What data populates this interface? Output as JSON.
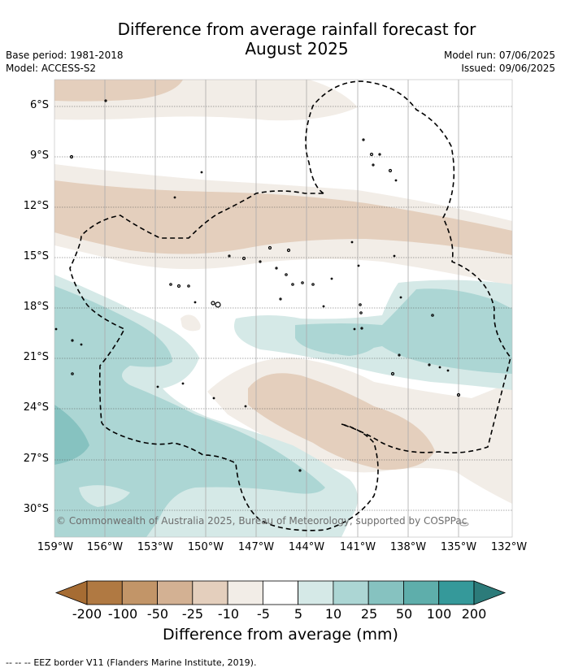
{
  "header": {
    "title_line1": "Difference from average rainfall forecast for",
    "title_line2": "August 2025",
    "base_period": "Base period: 1981-2018",
    "model": "Model: ACCESS-S2",
    "model_run": "Model run: 07/06/2025",
    "issued": "Issued: 09/06/2025"
  },
  "map": {
    "lat_labels": [
      "6°S",
      "9°S",
      "12°S",
      "15°S",
      "18°S",
      "21°S",
      "24°S",
      "27°S",
      "30°S"
    ],
    "lon_labels": [
      "159°W",
      "156°W",
      "153°W",
      "150°W",
      "147°W",
      "144°W",
      "141°W",
      "138°W",
      "135°W",
      "132°W"
    ],
    "copyright": "© Commonwealth of Australia 2025, Bureau of Meteorology, supported by COSPPac",
    "colors": {
      "dry_25_50": "#d3b193",
      "dry_10_25": "#e4cfbd",
      "dry_5_10": "#f2ede7",
      "wet_5_10": "#d5e9e7",
      "wet_10_25": "#acd6d4",
      "wet_25_50": "#86c2c0"
    }
  },
  "colorbar": {
    "labels": [
      "-200",
      "-100",
      "-50",
      "-25",
      "-10",
      "-5",
      "5",
      "10",
      "25",
      "50",
      "100",
      "200"
    ],
    "colors": [
      "#a66c33",
      "#b07942",
      "#c29568",
      "#d3b193",
      "#e4cfbd",
      "#f2ede7",
      "#ffffff",
      "#d5e9e7",
      "#acd6d4",
      "#86c2c0",
      "#5eaeab",
      "#35999a",
      "#2c7b7a"
    ],
    "title": "Difference from average (mm)"
  },
  "footer": {
    "legend_symbol": "--  --  --",
    "legend_text": "EEZ border V11 (Flanders Marine Institute, 2019)."
  }
}
